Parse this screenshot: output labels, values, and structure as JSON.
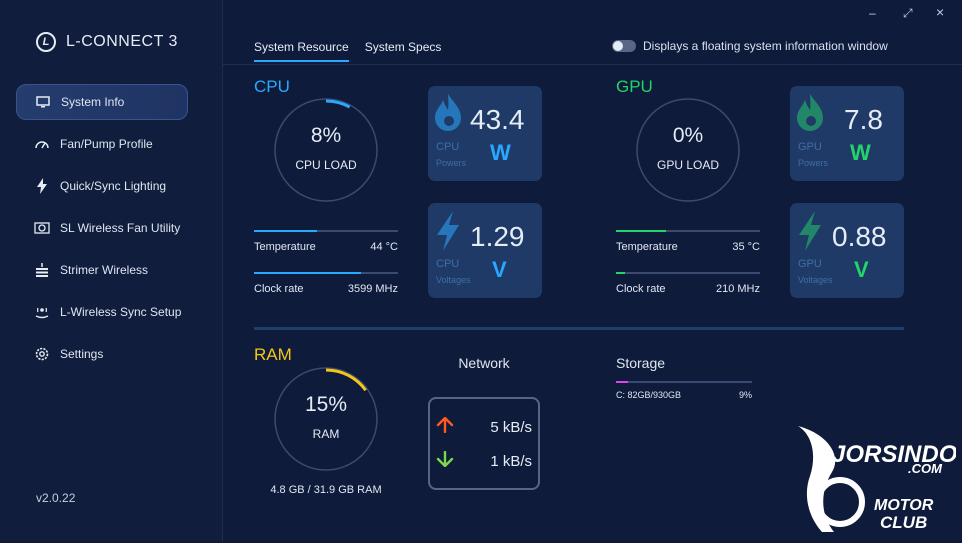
{
  "app": {
    "title": "L-CONNECT 3",
    "version": "v2.0.22"
  },
  "window_controls": {
    "minimize": "–",
    "maximize": "⤢",
    "close": "×"
  },
  "sidebar": {
    "items": [
      {
        "label": "System Info",
        "icon": "monitor-icon",
        "active": true
      },
      {
        "label": "Fan/Pump Profile",
        "icon": "gauge-icon"
      },
      {
        "label": "Quick/Sync Lighting",
        "icon": "lightning-icon"
      },
      {
        "label": "SL Wireless Fan Utility",
        "icon": "fan-box-icon"
      },
      {
        "label": "Strimer Wireless",
        "icon": "strimer-icon"
      },
      {
        "label": "L-Wireless Sync Setup",
        "icon": "wireless-icon"
      },
      {
        "label": "Settings",
        "icon": "gear-icon"
      }
    ]
  },
  "tabs": [
    {
      "label": "System Resource",
      "active": true
    },
    {
      "label": "System Specs",
      "active": false
    }
  ],
  "floating_toggle": {
    "label": "Displays a floating system information window",
    "enabled": false
  },
  "cpu": {
    "title": "CPU",
    "load_value": "8%",
    "load_label": "CPU LOAD",
    "load_fraction": 0.08,
    "temperature_label": "Temperature",
    "temperature_value": "44 °C",
    "temperature_fraction": 0.44,
    "clock_label": "Clock rate",
    "clock_value": "3599 MHz",
    "clock_fraction": 0.74,
    "power": {
      "value": "43.4",
      "unit": "W",
      "name": "CPU",
      "kind": "Powers"
    },
    "voltage": {
      "value": "1.29",
      "unit": "V",
      "name": "CPU",
      "kind": "Voltages"
    }
  },
  "gpu": {
    "title": "GPU",
    "load_value": "0%",
    "load_label": "GPU LOAD",
    "load_fraction": 0.0,
    "temperature_label": "Temperature",
    "temperature_value": "35 °C",
    "temperature_fraction": 0.35,
    "clock_label": "Clock rate",
    "clock_value": "210 MHz",
    "clock_fraction": 0.06,
    "power": {
      "value": "7.8",
      "unit": "W",
      "name": "GPU",
      "kind": "Powers"
    },
    "voltage": {
      "value": "0.88",
      "unit": "V",
      "name": "GPU",
      "kind": "Voltages"
    }
  },
  "ram": {
    "title": "RAM",
    "load_value": "15%",
    "load_label": "RAM",
    "load_fraction": 0.15,
    "usage_text": "4.8 GB / 31.9 GB RAM"
  },
  "network": {
    "title": "Network",
    "upload": "5 kB/s",
    "download": "1 kB/s"
  },
  "storage": {
    "title": "Storage",
    "drives": [
      {
        "label": "C: 82GB/930GB",
        "percent": "9%",
        "fraction": 0.09
      }
    ]
  },
  "colors": {
    "cpu": "#29a8ff",
    "gpu": "#23d46a",
    "ram": "#f5c518",
    "storage": "#d946ef",
    "upload": "#ff5a1f",
    "download": "#7ad84a"
  }
}
